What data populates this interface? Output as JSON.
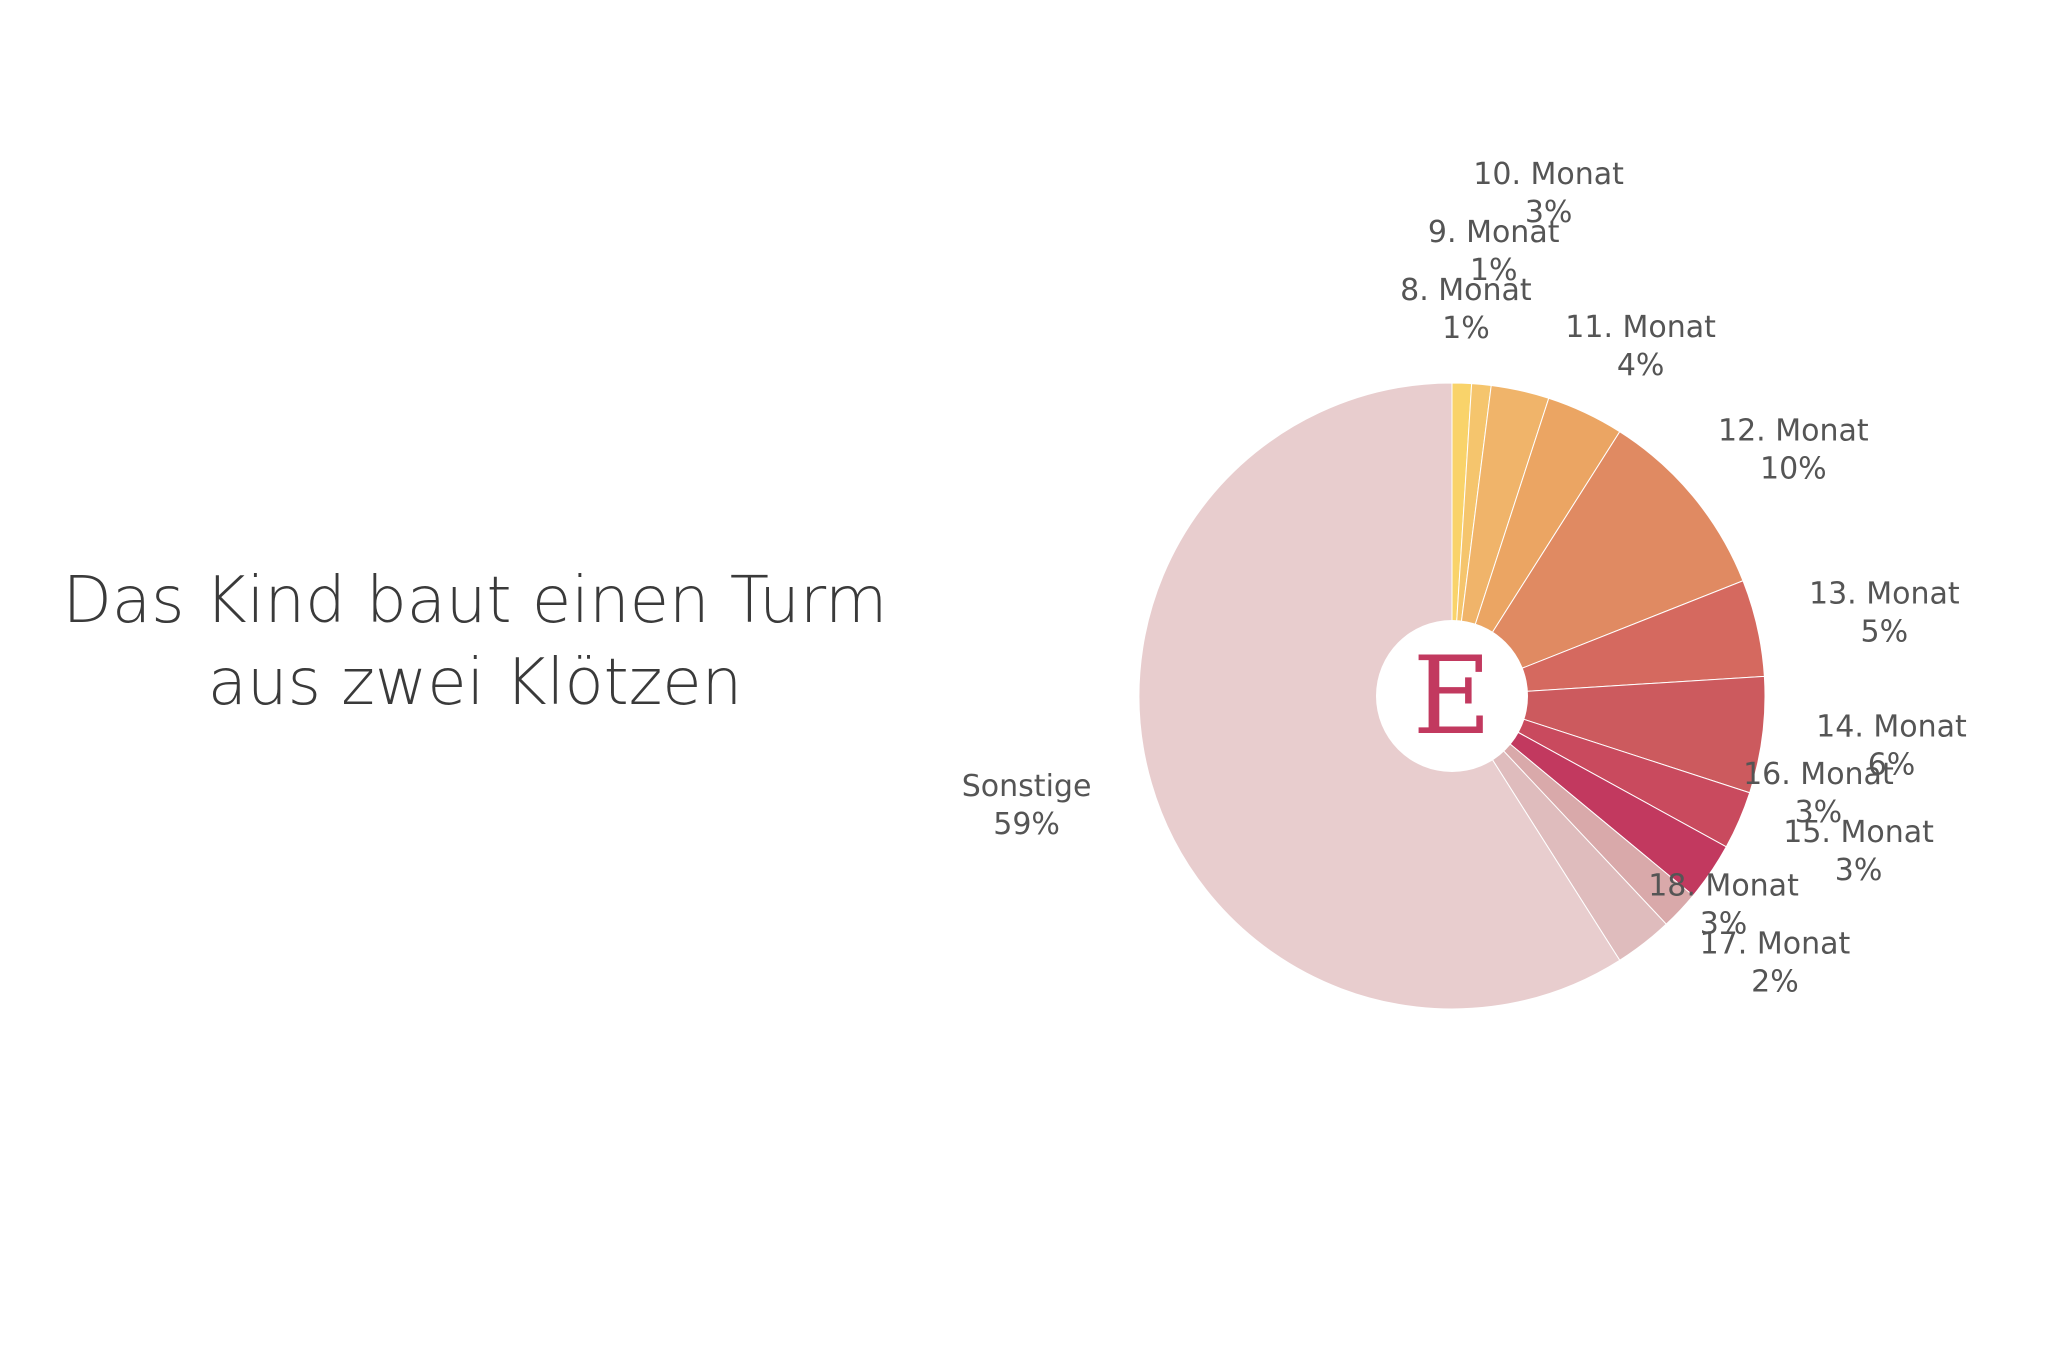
{
  "chart_data": {
    "type": "pie",
    "title": "Das Kind baut einen Turm aus zwei Klötzen",
    "center_logo": "E",
    "categories": [
      "8. Monat",
      "9. Monat",
      "10. Monat",
      "11. Monat",
      "12. Monat",
      "13. Monat",
      "14. Monat",
      "15. Monat",
      "16. Monat",
      "17. Monat",
      "18. Monat",
      "Sonstige"
    ],
    "values": [
      1,
      1,
      3,
      4,
      10,
      5,
      6,
      3,
      3,
      2,
      3,
      59
    ],
    "value_labels": [
      "1%",
      "1%",
      "3%",
      "4%",
      "10%",
      "5%",
      "6%",
      "3%",
      "3%",
      "2%",
      "3%",
      "59%"
    ],
    "colors": [
      "#f9d36a",
      "#f5c56d",
      "#f0b46a",
      "#eba563",
      "#e08a62",
      "#d5695f",
      "#cc5a5e",
      "#c94a5e",
      "#c2395f",
      "#d9a9aa",
      "#dfbcbd",
      "#e8cdce"
    ]
  }
}
